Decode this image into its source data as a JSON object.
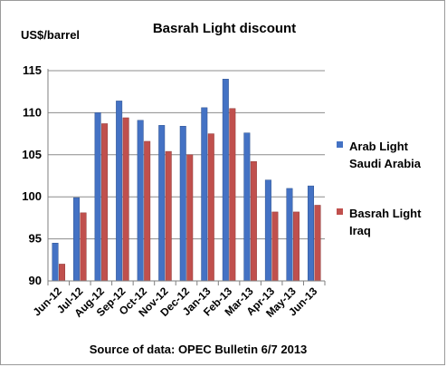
{
  "chart_data": {
    "type": "bar",
    "title": "Basrah Light discount",
    "ylabel": "US$/barrel",
    "xlabel": "",
    "source": "Source of data: OPEC Bulletin 6/7 2013",
    "categories": [
      "Jun-12",
      "Jul-12",
      "Aug-12",
      "Sep-12",
      "Oct-12",
      "Nov-12",
      "Dec-12",
      "Jan-13",
      "Feb-13",
      "Mar-13",
      "Apr-13",
      "May-13",
      "Jun-13"
    ],
    "ylim": [
      90,
      115
    ],
    "yticks": [
      "90",
      "95",
      "100",
      "105",
      "110",
      "115"
    ],
    "grid": true,
    "legend_position": "right",
    "series": [
      {
        "name_lines": [
          "Arab Light",
          "Saudi Arabia"
        ],
        "color": "#4472c4",
        "values": [
          94.5,
          99.9,
          110.0,
          111.4,
          109.1,
          108.5,
          108.4,
          110.6,
          114.0,
          107.6,
          102.0,
          101.0,
          101.3
        ]
      },
      {
        "name_lines": [
          "Basrah Light",
          "Iraq"
        ],
        "color": "#c0504d",
        "values": [
          92.0,
          98.1,
          108.7,
          109.4,
          106.6,
          105.4,
          105.0,
          107.5,
          110.5,
          104.2,
          98.2,
          98.2,
          99.0
        ]
      }
    ]
  }
}
